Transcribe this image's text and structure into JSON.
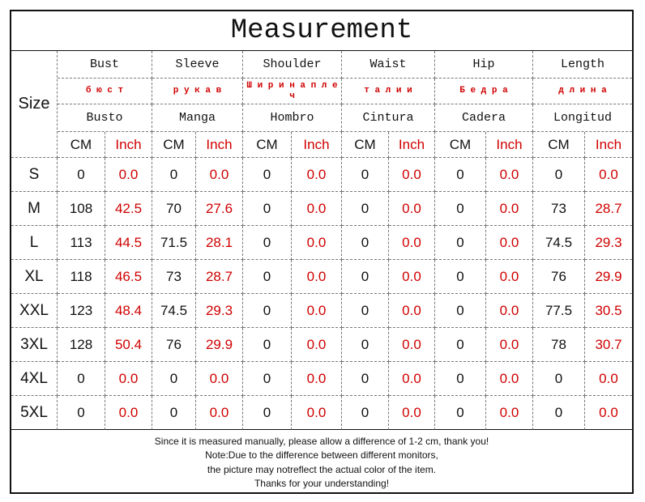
{
  "title": "Measurement",
  "table": {
    "size_header": "Size",
    "columns": [
      {
        "en": "Bust",
        "ru": "б ю с т",
        "es": "Busto"
      },
      {
        "en": "Sleeve",
        "ru": "р у к а в",
        "es": "Manga"
      },
      {
        "en": "Shoulder",
        "ru": "Ш и р и н а  п л е ч",
        "es": "Hombro"
      },
      {
        "en": "Waist",
        "ru": "т а л и и",
        "es": "Cintura"
      },
      {
        "en": "Hip",
        "ru": "Б е д р а",
        "es": "Cadera"
      },
      {
        "en": "Length",
        "ru": "д л и н а",
        "es": "Longitud"
      }
    ],
    "units": [
      "CM",
      "Inch"
    ],
    "rows": [
      [
        "S",
        "0",
        "0.0",
        "0",
        "0.0",
        "0",
        "0.0",
        "0",
        "0.0",
        "0",
        "0.0",
        "0",
        "0.0"
      ],
      [
        "M",
        "108",
        "42.5",
        "70",
        "27.6",
        "0",
        "0.0",
        "0",
        "0.0",
        "0",
        "0.0",
        "73",
        "28.7"
      ],
      [
        "L",
        "113",
        "44.5",
        "71.5",
        "28.1",
        "0",
        "0.0",
        "0",
        "0.0",
        "0",
        "0.0",
        "74.5",
        "29.3"
      ],
      [
        "XL",
        "118",
        "46.5",
        "73",
        "28.7",
        "0",
        "0.0",
        "0",
        "0.0",
        "0",
        "0.0",
        "76",
        "29.9"
      ],
      [
        "XXL",
        "123",
        "48.4",
        "74.5",
        "29.3",
        "0",
        "0.0",
        "0",
        "0.0",
        "0",
        "0.0",
        "77.5",
        "30.5"
      ],
      [
        "3XL",
        "128",
        "50.4",
        "76",
        "29.9",
        "0",
        "0.0",
        "0",
        "0.0",
        "0",
        "0.0",
        "78",
        "30.7"
      ],
      [
        "4XL",
        "0",
        "0.0",
        "0",
        "0.0",
        "0",
        "0.0",
        "0",
        "0.0",
        "0",
        "0.0",
        "0",
        "0.0"
      ],
      [
        "5XL",
        "0",
        "0.0",
        "0",
        "0.0",
        "0",
        "0.0",
        "0",
        "0.0",
        "0",
        "0.0",
        "0",
        "0.0"
      ]
    ]
  },
  "footer": [
    "Since it is measured manually, please allow a difference of 1-2 cm, thank you!",
    "Note:Due to the difference between different monitors,",
    "the picture may notreflect the actual color of the item.",
    "Thanks for your understanding!"
  ]
}
